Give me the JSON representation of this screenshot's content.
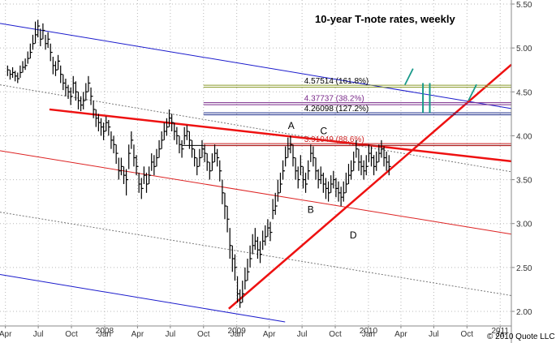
{
  "chart_data": {
    "type": "ohlc",
    "title": "10-year T-note rates, weekly",
    "copyright": "© 2010 Quote LLC",
    "colors": {
      "bars": "#000000",
      "channel_blue": "#1a1acc",
      "channel_red": "#dd2222",
      "trend_red": "#ee1111",
      "olive": "#8a9a2a",
      "purple": "#7a2a8a",
      "navy": "#1a2a8a",
      "fib_red": "#cc2222",
      "teal": "#1a9a8a",
      "grid": "#b8b8b8"
    },
    "y_axis": {
      "range": [
        1.88,
        5.5
      ],
      "ticks": [
        "5.50",
        "5.00",
        "4.50",
        "4.00",
        "3.50",
        "3.00",
        "2.50",
        "2.00"
      ],
      "tick_values": [
        5.5,
        5.0,
        4.5,
        4.0,
        3.5,
        3.0,
        2.5,
        2.0
      ],
      "position": "right",
      "grid": true
    },
    "x_axis": {
      "range": [
        "2007-03-17",
        "2011-02-01"
      ],
      "month_labels": [
        {
          "label": "Apr",
          "date": "2007-04-01"
        },
        {
          "label": "Jul",
          "date": "2007-07-01"
        },
        {
          "label": "Oct",
          "date": "2007-10-01"
        },
        {
          "label": "Jan",
          "date": "2008-01-01"
        },
        {
          "label": "Apr",
          "date": "2008-04-01"
        },
        {
          "label": "Jul",
          "date": "2008-07-01"
        },
        {
          "label": "Oct",
          "date": "2008-10-01"
        },
        {
          "label": "Jan",
          "date": "2009-01-01"
        },
        {
          "label": "Apr",
          "date": "2009-04-01"
        },
        {
          "label": "Jul",
          "date": "2009-07-01"
        },
        {
          "label": "Oct",
          "date": "2009-10-01"
        },
        {
          "label": "Jan",
          "date": "2010-01-01"
        },
        {
          "label": "Apr",
          "date": "2010-04-01"
        },
        {
          "label": "Jul",
          "date": "2010-07-01"
        },
        {
          "label": "Oct",
          "date": "2010-10-01"
        },
        {
          "label": "Ja",
          "date": "2011-01-01"
        }
      ],
      "year_labels": [
        {
          "label": "2008",
          "date": "2008-01-01"
        },
        {
          "label": "2009",
          "date": "2009-01-01"
        },
        {
          "label": "2010",
          "date": "2010-01-01"
        },
        {
          "label": "2011",
          "date": "2011-01-01"
        }
      ],
      "grid": true
    },
    "series": [
      {
        "start": "2007-04-07",
        "interval_days": 7,
        "close": [
          4.75,
          4.7,
          4.72,
          4.68,
          4.65,
          4.72,
          4.78,
          4.8,
          4.88,
          4.95,
          5.05,
          5.15,
          5.25,
          5.1,
          5.2,
          5.05,
          5.1,
          4.95,
          4.8,
          4.75,
          4.85,
          4.7,
          4.6,
          4.55,
          4.5,
          4.45,
          4.6,
          4.5,
          4.4,
          4.35,
          4.4,
          4.5,
          4.6,
          4.45,
          4.3,
          4.2,
          4.15,
          4.1,
          4.05,
          4.15,
          4.1,
          3.95,
          3.9,
          3.8,
          3.6,
          3.65,
          3.55,
          3.5,
          3.8,
          3.95,
          3.75,
          3.65,
          3.45,
          3.4,
          3.55,
          3.45,
          3.55,
          3.7,
          3.65,
          3.75,
          3.85,
          3.95,
          4.05,
          4.1,
          4.2,
          4.15,
          4.05,
          4.0,
          3.9,
          3.85,
          4.0,
          4.05,
          3.95,
          3.85,
          3.75,
          3.65,
          3.75,
          3.85,
          3.8,
          3.7,
          3.6,
          3.7,
          3.8,
          3.75,
          3.6,
          3.35,
          3.2,
          3.05,
          2.75,
          2.6,
          2.5,
          2.2,
          2.1,
          2.2,
          2.35,
          2.45,
          2.6,
          2.75,
          2.8,
          2.7,
          2.65,
          2.8,
          2.85,
          2.95,
          2.9,
          3.15,
          3.2,
          3.35,
          3.45,
          3.6,
          3.75,
          3.85,
          3.9,
          3.75,
          3.6,
          3.5,
          3.65,
          3.5,
          3.45,
          3.6,
          3.8,
          3.75,
          3.6,
          3.5,
          3.55,
          3.45,
          3.4,
          3.35,
          3.45,
          3.5,
          3.4,
          3.35,
          3.3,
          3.35,
          3.45,
          3.55,
          3.6,
          3.7,
          3.85,
          3.7,
          3.65,
          3.6,
          3.65,
          3.8,
          3.75,
          3.65,
          3.7,
          3.8,
          3.85,
          3.75,
          3.7,
          3.65
        ],
        "range_high": [
          4.8,
          4.75,
          4.78,
          4.74,
          4.72,
          4.8,
          4.85,
          4.88,
          4.96,
          5.05,
          5.15,
          5.3,
          5.32,
          5.22,
          5.28,
          5.15,
          5.18,
          5.05,
          4.9,
          4.85,
          4.92,
          4.8,
          4.7,
          4.65,
          4.58,
          4.55,
          4.68,
          4.62,
          4.5,
          4.45,
          4.5,
          4.6,
          4.68,
          4.55,
          4.4,
          4.3,
          4.25,
          4.2,
          4.15,
          4.22,
          4.18,
          4.05,
          4.0,
          3.9,
          3.75,
          3.75,
          3.65,
          3.62,
          3.9,
          4.05,
          3.9,
          3.78,
          3.58,
          3.52,
          3.65,
          3.58,
          3.65,
          3.8,
          3.78,
          3.85,
          3.95,
          4.05,
          4.15,
          4.2,
          4.3,
          4.25,
          4.15,
          4.1,
          4.0,
          3.95,
          4.1,
          4.12,
          4.05,
          3.95,
          3.85,
          3.75,
          3.85,
          3.95,
          3.9,
          3.8,
          3.7,
          3.8,
          3.9,
          3.85,
          3.72,
          3.5,
          3.35,
          3.2,
          2.95,
          2.75,
          2.65,
          2.4,
          2.25,
          2.35,
          2.5,
          2.6,
          2.75,
          2.88,
          2.95,
          2.85,
          2.8,
          2.92,
          2.98,
          3.05,
          3.02,
          3.28,
          3.35,
          3.5,
          3.58,
          3.72,
          3.88,
          3.98,
          4.0,
          3.9,
          3.75,
          3.65,
          3.78,
          3.65,
          3.58,
          3.72,
          3.9,
          3.88,
          3.75,
          3.62,
          3.65,
          3.58,
          3.52,
          3.48,
          3.55,
          3.6,
          3.52,
          3.48,
          3.42,
          3.48,
          3.58,
          3.68,
          3.72,
          3.82,
          3.95,
          3.85,
          3.78,
          3.72,
          3.78,
          3.9,
          3.88,
          3.78,
          3.82,
          3.9,
          3.95,
          3.88,
          3.82,
          3.78
        ],
        "range_low": [
          4.68,
          4.64,
          4.66,
          4.62,
          4.6,
          4.66,
          4.72,
          4.75,
          4.82,
          4.88,
          4.98,
          5.05,
          5.12,
          5.02,
          5.1,
          4.98,
          5.0,
          4.85,
          4.7,
          4.68,
          4.75,
          4.6,
          4.52,
          4.45,
          4.42,
          4.35,
          4.48,
          4.4,
          4.3,
          4.28,
          4.3,
          4.4,
          4.5,
          4.35,
          4.2,
          4.1,
          4.05,
          4.0,
          3.95,
          4.05,
          4.0,
          3.85,
          3.8,
          3.68,
          3.5,
          3.55,
          3.45,
          3.32,
          3.62,
          3.85,
          3.65,
          3.55,
          3.35,
          3.28,
          3.45,
          3.35,
          3.45,
          3.6,
          3.55,
          3.65,
          3.75,
          3.85,
          3.95,
          4.0,
          4.1,
          4.05,
          3.95,
          3.9,
          3.8,
          3.75,
          3.9,
          3.95,
          3.85,
          3.75,
          3.65,
          3.55,
          3.65,
          3.75,
          3.7,
          3.6,
          3.5,
          3.6,
          3.7,
          3.65,
          3.48,
          3.22,
          3.05,
          2.9,
          2.6,
          2.45,
          2.35,
          2.1,
          2.04,
          2.1,
          2.25,
          2.35,
          2.5,
          2.65,
          2.7,
          2.6,
          2.55,
          2.7,
          2.75,
          2.85,
          2.8,
          3.05,
          3.1,
          3.25,
          3.35,
          3.5,
          3.65,
          3.75,
          3.8,
          3.65,
          3.5,
          3.4,
          3.55,
          3.4,
          3.35,
          3.5,
          3.7,
          3.65,
          3.5,
          3.4,
          3.45,
          3.35,
          3.28,
          3.25,
          3.35,
          3.4,
          3.3,
          3.25,
          3.2,
          3.25,
          3.35,
          3.45,
          3.5,
          3.6,
          3.75,
          3.6,
          3.55,
          3.5,
          3.55,
          3.7,
          3.65,
          3.55,
          3.6,
          3.7,
          3.75,
          3.65,
          3.6,
          3.55
        ]
      }
    ],
    "trendlines": [
      {
        "key": "blue_upper",
        "style": "solid",
        "color_key": "channel_blue",
        "points": [
          [
            "2007-03-17",
            5.28
          ],
          [
            "2011-02-01",
            4.31
          ]
        ]
      },
      {
        "key": "gray_upper",
        "style": "dotted",
        "color_key": "grid",
        "points": [
          [
            "2007-03-17",
            4.58
          ],
          [
            "2011-02-01",
            3.59
          ]
        ]
      },
      {
        "key": "red_mid",
        "style": "solid",
        "color_key": "channel_red",
        "points": [
          [
            "2007-03-17",
            3.83
          ],
          [
            "2011-02-01",
            2.88
          ]
        ]
      },
      {
        "key": "gray_lower",
        "style": "dotted",
        "color_key": "grid",
        "points": [
          [
            "2007-03-17",
            3.13
          ],
          [
            "2011-02-01",
            2.18
          ]
        ]
      },
      {
        "key": "blue_lower",
        "style": "solid",
        "color_key": "channel_blue",
        "points": [
          [
            "2007-03-17",
            2.42
          ],
          [
            "2009-05-15",
            1.88
          ]
        ]
      },
      {
        "key": "resistance",
        "style": "bold",
        "color_key": "trend_red",
        "points": [
          [
            "2007-08-01",
            4.3
          ],
          [
            "2011-02-01",
            3.71
          ]
        ]
      },
      {
        "key": "support",
        "style": "bold",
        "color_key": "trend_red",
        "points": [
          [
            "2008-12-10",
            2.03
          ],
          [
            "2011-02-01",
            4.81
          ]
        ]
      },
      {
        "key": "dark_level",
        "style": "thin",
        "color_key": "bars",
        "points": [
          [
            "2008-08-01",
            3.89
          ],
          [
            "2011-02-01",
            3.89
          ]
        ]
      }
    ],
    "fib_levels": [
      {
        "label": "4.57514 (161.8%)",
        "value": 4.57514,
        "from": "2008-10-01",
        "color_key": "olive",
        "label_color_key": "bars"
      },
      {
        "label": "4.37737 (38.2%)",
        "value": 4.37737,
        "from": "2008-10-01",
        "color_key": "purple",
        "label_color_key": "purple"
      },
      {
        "label": "4.26098 (127.2%)",
        "value": 4.26098,
        "from": "2008-10-01",
        "color_key": "navy",
        "label_color_key": "bars"
      },
      {
        "label": "3.91049 (88.6%)",
        "value": 3.91049,
        "from": "2008-10-01",
        "color_key": "fib_red",
        "label_color_key": "fib_red"
      }
    ],
    "annotations": [
      {
        "text": "A",
        "date": "2009-06-01",
        "value": 4.08
      },
      {
        "text": "B",
        "date": "2009-07-25",
        "value": 3.12
      },
      {
        "text": "C",
        "date": "2009-08-30",
        "value": 4.02
      },
      {
        "text": "D",
        "date": "2009-11-20",
        "value": 2.83
      }
    ],
    "markers": [
      {
        "type": "tick",
        "date": "2010-04-12",
        "value": 4.58,
        "color_key": "teal"
      },
      {
        "type": "tick",
        "date": "2010-10-05",
        "value": 4.4,
        "color_key": "teal"
      },
      {
        "type": "vertical",
        "date": "2010-06-01",
        "from": 4.26,
        "to": 4.6,
        "color_key": "teal"
      },
      {
        "type": "vertical",
        "date": "2010-06-20",
        "from": 4.26,
        "to": 4.6,
        "color_key": "teal"
      }
    ]
  }
}
